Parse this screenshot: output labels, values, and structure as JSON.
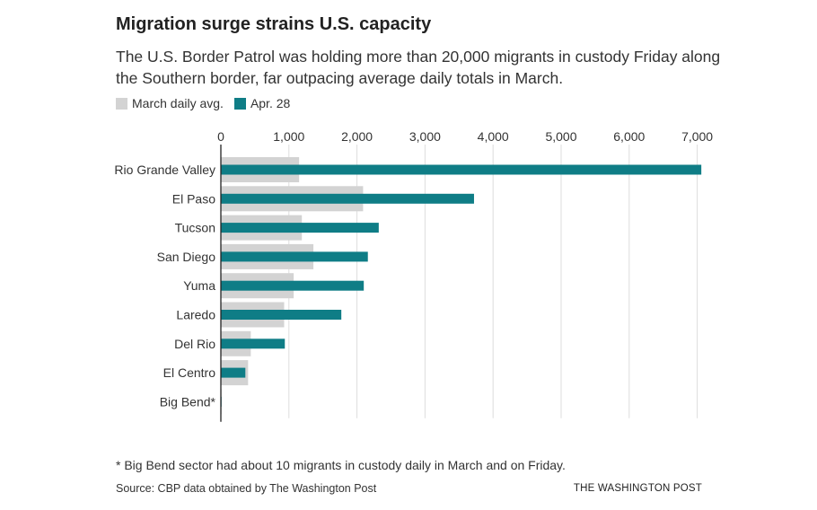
{
  "header": {
    "title": "Migration surge strains U.S. capacity",
    "subtitle": "The U.S. Border Patrol was holding more than 20,000 migrants in custody Friday along the Southern border, far outpacing average daily totals in March."
  },
  "legend": {
    "march_label": "March daily avg.",
    "april_label": "Apr. 28"
  },
  "colors": {
    "march": "#d3d3d3",
    "april": "#0f7d86",
    "axis": "#222222",
    "grid": "#dddddd"
  },
  "footer": {
    "footnote": "* Big Bend sector had about 10 migrants in custody daily in March and on Friday.",
    "source": "Source: CBP data obtained by The Washington Post",
    "credit": "THE WASHINGTON POST"
  },
  "chart_data": {
    "type": "bar",
    "orientation": "horizontal",
    "categories": [
      "Rio Grande Valley",
      "El Paso",
      "Tucson",
      "San Diego",
      "Yuma",
      "Laredo",
      "Del Rio",
      "El Centro",
      "Big Bend*"
    ],
    "series": [
      {
        "name": "March daily avg.",
        "values": [
          1150,
          2090,
          1190,
          1360,
          1070,
          930,
          440,
          400,
          10
        ]
      },
      {
        "name": "Apr. 28",
        "values": [
          7060,
          3720,
          2320,
          2160,
          2100,
          1770,
          940,
          360,
          10
        ]
      }
    ],
    "xticks": [
      0,
      1000,
      2000,
      3000,
      4000,
      5000,
      6000,
      7000
    ],
    "xtick_labels": [
      "0",
      "1,000",
      "2,000",
      "3,000",
      "4,000",
      "5,000",
      "6,000",
      "7,000"
    ],
    "xlim": [
      0,
      7000
    ],
    "grid": true,
    "legend_position": "top-left"
  }
}
